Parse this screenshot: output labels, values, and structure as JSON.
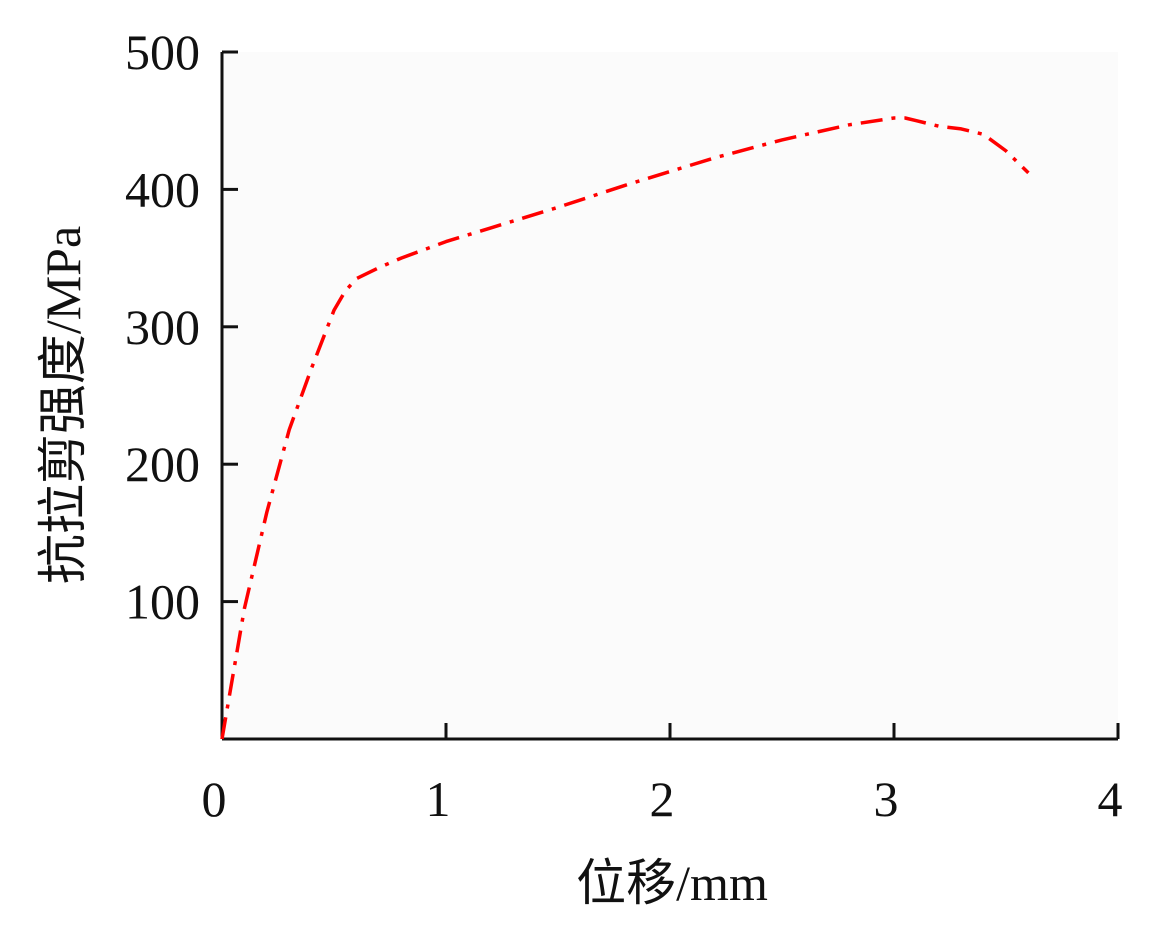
{
  "chart_data": {
    "type": "line",
    "title": "",
    "xlabel": "位移/mm",
    "ylabel": "抗拉剪强度/MPa",
    "xlim": [
      0,
      4
    ],
    "ylim": [
      0,
      500
    ],
    "x_ticks": [
      0,
      1,
      2,
      3,
      4
    ],
    "y_ticks": [
      100,
      200,
      300,
      400,
      500
    ],
    "x_tick_labels": [
      "0",
      "1",
      "2",
      "3",
      "4"
    ],
    "y_tick_labels": [
      "100",
      "200",
      "300",
      "400",
      "500"
    ],
    "grid": false,
    "legend": "none",
    "series": [
      {
        "color": "#ff0000",
        "line_style": "dash-dot",
        "x": [
          0.0,
          0.1,
          0.2,
          0.3,
          0.4,
          0.5,
          0.55,
          0.6,
          0.7,
          0.8,
          1.0,
          1.2,
          1.5,
          1.8,
          2.0,
          2.2,
          2.5,
          2.8,
          3.0,
          3.05,
          3.1,
          3.2,
          3.3,
          3.4,
          3.5,
          3.55,
          3.6
        ],
        "y": [
          0,
          95,
          165,
          225,
          270,
          312,
          326,
          335,
          343,
          350,
          362,
          372,
          387,
          403,
          413,
          423,
          436,
          447,
          452,
          452,
          450,
          446,
          444,
          440,
          428,
          420,
          412
        ]
      }
    ]
  }
}
